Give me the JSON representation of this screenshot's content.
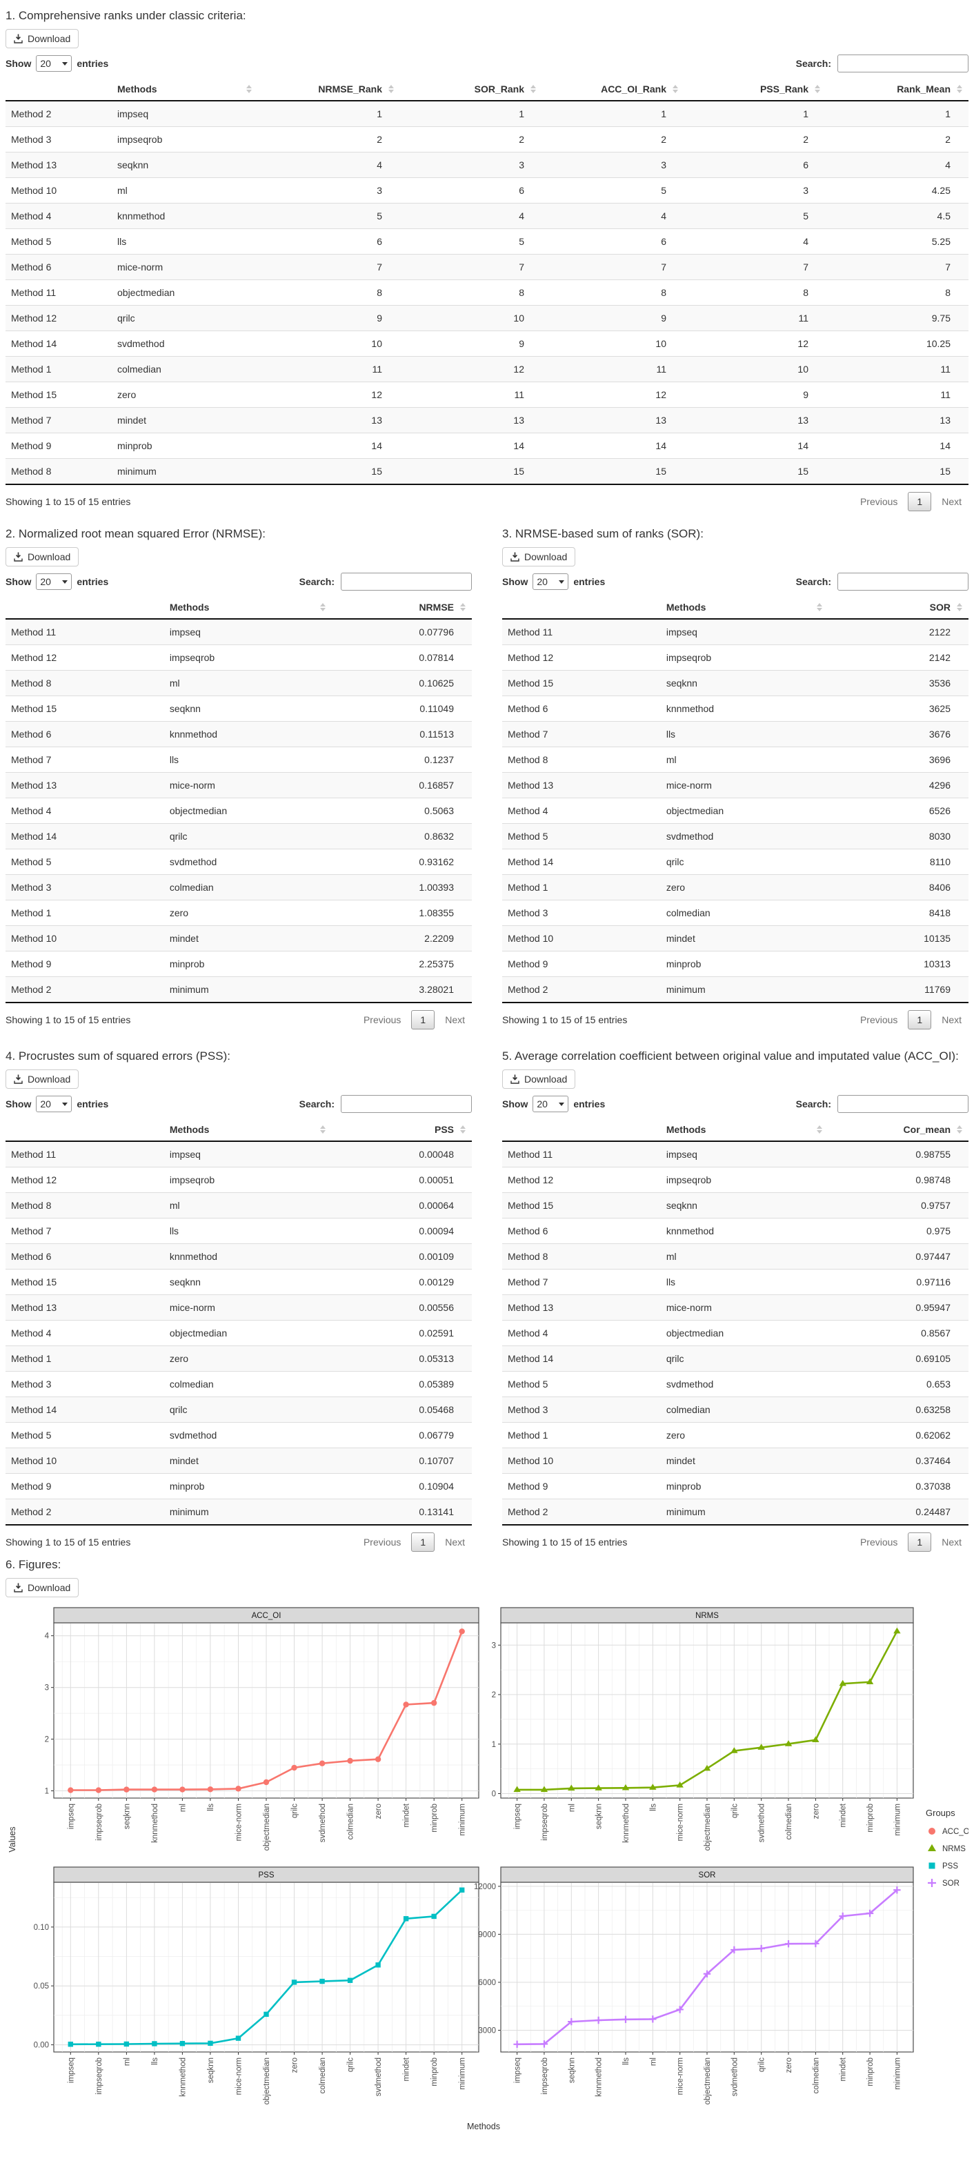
{
  "controls": {
    "download_label": "Download",
    "show_label": "Show",
    "page_length": "20",
    "entries_label": "entries",
    "search_label": "Search:",
    "search_value": "",
    "showing_text": "Showing 1 to 15 of 15 entries",
    "previous_label": "Previous",
    "page_number": "1",
    "next_label": "Next"
  },
  "sections": [
    {
      "id": "s1",
      "title": "1. Comprehensive ranks under classic criteria:",
      "columns": [
        "",
        "Methods",
        "NRMSE_Rank",
        "SOR_Rank",
        "ACC_OI_Rank",
        "PSS_Rank",
        "Rank_Mean"
      ],
      "rows": [
        [
          "Method 2",
          "impseq",
          "1",
          "1",
          "1",
          "1",
          "1"
        ],
        [
          "Method 3",
          "impseqrob",
          "2",
          "2",
          "2",
          "2",
          "2"
        ],
        [
          "Method 13",
          "seqknn",
          "4",
          "3",
          "3",
          "6",
          "4"
        ],
        [
          "Method 10",
          "ml",
          "3",
          "6",
          "5",
          "3",
          "4.25"
        ],
        [
          "Method 4",
          "knnmethod",
          "5",
          "4",
          "4",
          "5",
          "4.5"
        ],
        [
          "Method 5",
          "lls",
          "6",
          "5",
          "6",
          "4",
          "5.25"
        ],
        [
          "Method 6",
          "mice-norm",
          "7",
          "7",
          "7",
          "7",
          "7"
        ],
        [
          "Method 11",
          "objectmedian",
          "8",
          "8",
          "8",
          "8",
          "8"
        ],
        [
          "Method 12",
          "qrilc",
          "9",
          "10",
          "9",
          "11",
          "9.75"
        ],
        [
          "Method 14",
          "svdmethod",
          "10",
          "9",
          "10",
          "12",
          "10.25"
        ],
        [
          "Method 1",
          "colmedian",
          "11",
          "12",
          "11",
          "10",
          "11"
        ],
        [
          "Method 15",
          "zero",
          "12",
          "11",
          "12",
          "9",
          "11"
        ],
        [
          "Method 7",
          "mindet",
          "13",
          "13",
          "13",
          "13",
          "13"
        ],
        [
          "Method 9",
          "minprob",
          "14",
          "14",
          "14",
          "14",
          "14"
        ],
        [
          "Method 8",
          "minimum",
          "15",
          "15",
          "15",
          "15",
          "15"
        ]
      ]
    },
    {
      "id": "s2",
      "title": "2. Normalized root mean squared Error (NRMSE):",
      "columns": [
        "",
        "Methods",
        "NRMSE"
      ],
      "rows": [
        [
          "Method 11",
          "impseq",
          "0.07796"
        ],
        [
          "Method 12",
          "impseqrob",
          "0.07814"
        ],
        [
          "Method 8",
          "ml",
          "0.10625"
        ],
        [
          "Method 15",
          "seqknn",
          "0.11049"
        ],
        [
          "Method 6",
          "knnmethod",
          "0.11513"
        ],
        [
          "Method 7",
          "lls",
          "0.1237"
        ],
        [
          "Method 13",
          "mice-norm",
          "0.16857"
        ],
        [
          "Method 4",
          "objectmedian",
          "0.5063"
        ],
        [
          "Method 14",
          "qrilc",
          "0.8632"
        ],
        [
          "Method 5",
          "svdmethod",
          "0.93162"
        ],
        [
          "Method 3",
          "colmedian",
          "1.00393"
        ],
        [
          "Method 1",
          "zero",
          "1.08355"
        ],
        [
          "Method 10",
          "mindet",
          "2.2209"
        ],
        [
          "Method 9",
          "minprob",
          "2.25375"
        ],
        [
          "Method 2",
          "minimum",
          "3.28021"
        ]
      ]
    },
    {
      "id": "s3",
      "title": "3. NRMSE-based sum of ranks (SOR):",
      "columns": [
        "",
        "Methods",
        "SOR"
      ],
      "rows": [
        [
          "Method 11",
          "impseq",
          "2122"
        ],
        [
          "Method 12",
          "impseqrob",
          "2142"
        ],
        [
          "Method 15",
          "seqknn",
          "3536"
        ],
        [
          "Method 6",
          "knnmethod",
          "3625"
        ],
        [
          "Method 7",
          "lls",
          "3676"
        ],
        [
          "Method 8",
          "ml",
          "3696"
        ],
        [
          "Method 13",
          "mice-norm",
          "4296"
        ],
        [
          "Method 4",
          "objectmedian",
          "6526"
        ],
        [
          "Method 5",
          "svdmethod",
          "8030"
        ],
        [
          "Method 14",
          "qrilc",
          "8110"
        ],
        [
          "Method 1",
          "zero",
          "8406"
        ],
        [
          "Method 3",
          "colmedian",
          "8418"
        ],
        [
          "Method 10",
          "mindet",
          "10135"
        ],
        [
          "Method 9",
          "minprob",
          "10313"
        ],
        [
          "Method 2",
          "minimum",
          "11769"
        ]
      ]
    },
    {
      "id": "s4",
      "title": "4. Procrustes sum of squared errors (PSS):",
      "columns": [
        "",
        "Methods",
        "PSS"
      ],
      "rows": [
        [
          "Method 11",
          "impseq",
          "0.00048"
        ],
        [
          "Method 12",
          "impseqrob",
          "0.00051"
        ],
        [
          "Method 8",
          "ml",
          "0.00064"
        ],
        [
          "Method 7",
          "lls",
          "0.00094"
        ],
        [
          "Method 6",
          "knnmethod",
          "0.00109"
        ],
        [
          "Method 15",
          "seqknn",
          "0.00129"
        ],
        [
          "Method 13",
          "mice-norm",
          "0.00556"
        ],
        [
          "Method 4",
          "objectmedian",
          "0.02591"
        ],
        [
          "Method 1",
          "zero",
          "0.05313"
        ],
        [
          "Method 3",
          "colmedian",
          "0.05389"
        ],
        [
          "Method 14",
          "qrilc",
          "0.05468"
        ],
        [
          "Method 5",
          "svdmethod",
          "0.06779"
        ],
        [
          "Method 10",
          "mindet",
          "0.10707"
        ],
        [
          "Method 9",
          "minprob",
          "0.10904"
        ],
        [
          "Method 2",
          "minimum",
          "0.13141"
        ]
      ]
    },
    {
      "id": "s5",
      "title": "5. Average correlation coefficient between original value and imputated value (ACC_OI):",
      "columns": [
        "",
        "Methods",
        "Cor_mean"
      ],
      "rows": [
        [
          "Method 11",
          "impseq",
          "0.98755"
        ],
        [
          "Method 12",
          "impseqrob",
          "0.98748"
        ],
        [
          "Method 15",
          "seqknn",
          "0.9757"
        ],
        [
          "Method 6",
          "knnmethod",
          "0.975"
        ],
        [
          "Method 8",
          "ml",
          "0.97447"
        ],
        [
          "Method 7",
          "lls",
          "0.97116"
        ],
        [
          "Method 13",
          "mice-norm",
          "0.95947"
        ],
        [
          "Method 4",
          "objectmedian",
          "0.8567"
        ],
        [
          "Method 14",
          "qrilc",
          "0.69105"
        ],
        [
          "Method 5",
          "svdmethod",
          "0.653"
        ],
        [
          "Method 3",
          "colmedian",
          "0.63258"
        ],
        [
          "Method 1",
          "zero",
          "0.62062"
        ],
        [
          "Method 10",
          "mindet",
          "0.37464"
        ],
        [
          "Method 9",
          "minprob",
          "0.37038"
        ],
        [
          "Method 2",
          "minimum",
          "0.24487"
        ]
      ]
    },
    {
      "id": "s6",
      "title": "6. Figures:"
    }
  ],
  "figure": {
    "ylabel": "Values",
    "xlabel": "Methods",
    "legend_title": "Groups",
    "legend": [
      {
        "label": "ACC_OI",
        "marker": "circle",
        "color": "#F8766D"
      },
      {
        "label": "NRMS",
        "marker": "triangle",
        "color": "#7CAE00"
      },
      {
        "label": "PSS",
        "marker": "square",
        "color": "#00BFC4"
      },
      {
        "label": "SOR",
        "marker": "plus",
        "color": "#C77CFF"
      }
    ],
    "panel_strip_color": "#d9d9d9",
    "grid_major_color": "#dcdcdc",
    "grid_minor_color": "#ededed"
  },
  "chart_data": [
    {
      "type": "line",
      "title": "ACC_OI",
      "marker": "circle",
      "color": "#F8766D",
      "categories": [
        "impseq",
        "impseqrob",
        "seqknn",
        "knnmethod",
        "ml",
        "lls",
        "mice-norm",
        "objectmedian",
        "qrilc",
        "svdmethod",
        "colmedian",
        "zero",
        "mindet",
        "minprob",
        "minimum"
      ],
      "values": [
        1.013,
        1.013,
        1.025,
        1.026,
        1.026,
        1.03,
        1.042,
        1.167,
        1.447,
        1.531,
        1.581,
        1.611,
        2.669,
        2.7,
        4.084
      ],
      "yticks": [
        1,
        2,
        3,
        4
      ],
      "ytick_labels": [
        "1",
        "2",
        "3",
        "4"
      ],
      "ylim": [
        0.86,
        4.25
      ],
      "grid": true,
      "legend_position": "right"
    },
    {
      "type": "line",
      "title": "NRMS",
      "marker": "triangle",
      "color": "#7CAE00",
      "categories": [
        "impseq",
        "impseqrob",
        "ml",
        "seqknn",
        "knnmethod",
        "lls",
        "mice-norm",
        "objectmedian",
        "qrilc",
        "svdmethod",
        "colmedian",
        "zero",
        "mindet",
        "minprob",
        "minimum"
      ],
      "values": [
        0.07796,
        0.07814,
        0.10625,
        0.11049,
        0.11513,
        0.1237,
        0.16857,
        0.5063,
        0.8632,
        0.93162,
        1.00393,
        1.08355,
        2.2209,
        2.25375,
        3.28021
      ],
      "yticks": [
        0,
        1,
        2,
        3
      ],
      "ytick_labels": [
        "0",
        "1",
        "2",
        "3"
      ],
      "ylim": [
        -0.09,
        3.45
      ],
      "grid": true,
      "legend_position": "right"
    },
    {
      "type": "line",
      "title": "PSS",
      "marker": "square",
      "color": "#00BFC4",
      "categories": [
        "impseq",
        "impseqrob",
        "ml",
        "lls",
        "knnmethod",
        "seqknn",
        "mice-norm",
        "objectmedian",
        "zero",
        "colmedian",
        "qrilc",
        "svdmethod",
        "mindet",
        "minprob",
        "minimum"
      ],
      "values": [
        0.00048,
        0.00051,
        0.00064,
        0.00094,
        0.00109,
        0.00129,
        0.00556,
        0.02591,
        0.05313,
        0.05389,
        0.05468,
        0.06779,
        0.10707,
        0.10904,
        0.13141
      ],
      "yticks": [
        0,
        0.05,
        0.1
      ],
      "ytick_labels": [
        "0.00",
        "0.05",
        "0.10"
      ],
      "ylim": [
        -0.0061,
        0.138
      ],
      "grid": true,
      "legend_position": "right"
    },
    {
      "type": "line",
      "title": "SOR",
      "marker": "plus",
      "color": "#C77CFF",
      "categories": [
        "impseq",
        "impseqrob",
        "seqknn",
        "knnmethod",
        "lls",
        "ml",
        "mice-norm",
        "objectmedian",
        "svdmethod",
        "qrilc",
        "zero",
        "colmedian",
        "mindet",
        "minprob",
        "minimum"
      ],
      "values": [
        2122,
        2142,
        3536,
        3625,
        3676,
        3696,
        4296,
        6526,
        8030,
        8110,
        8406,
        8418,
        10135,
        10313,
        11769
      ],
      "yticks": [
        3000,
        6000,
        9000,
        12000
      ],
      "ytick_labels": [
        "3000",
        "6000",
        "9000",
        "12000"
      ],
      "ylim": [
        1640,
        12255
      ],
      "grid": true,
      "legend_position": "right"
    }
  ]
}
